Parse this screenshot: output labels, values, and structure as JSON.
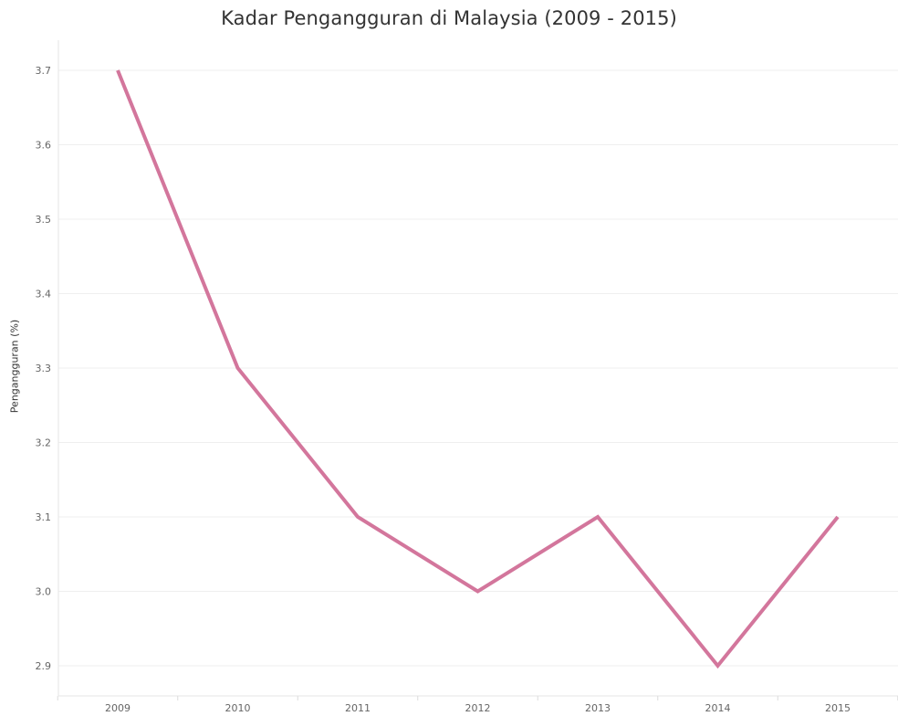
{
  "chart_data": {
    "type": "line",
    "title": "Kadar Pengangguran di Malaysia (2009 - 2015)",
    "xlabel": "",
    "ylabel": "Pengangguran (%)",
    "x": [
      "2009",
      "2010",
      "2011",
      "2012",
      "2013",
      "2014",
      "2015"
    ],
    "series": [
      {
        "values": [
          3.7,
          3.3,
          3.1,
          3.0,
          3.1,
          2.9,
          3.1
        ],
        "color": "#d3769c"
      }
    ],
    "y_ticks": [
      "3.7",
      "3.6",
      "3.5",
      "3.4",
      "3.3",
      "3.2",
      "3.1",
      "3.0",
      "2.9"
    ],
    "ylim": [
      2.9,
      3.7
    ],
    "grid": true,
    "legend": "none"
  }
}
